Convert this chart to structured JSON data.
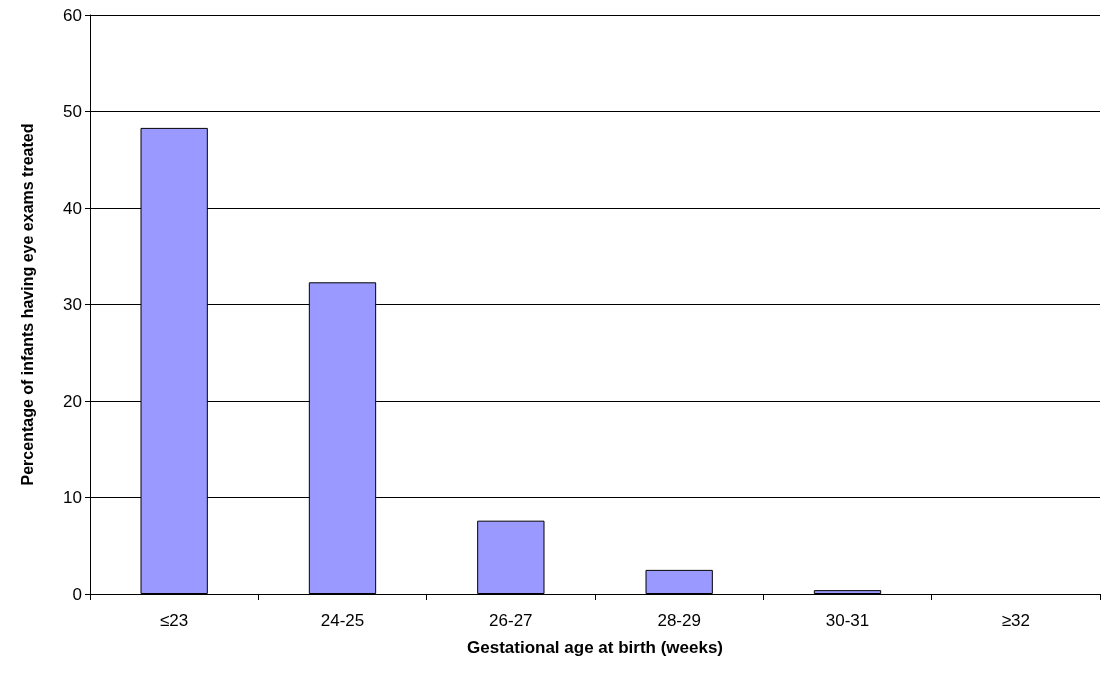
{
  "chart_data": {
    "type": "bar",
    "xlabel": "Gestational age at birth (weeks)",
    "ylabel": "Percentage of infants having eye exams treated",
    "categories": [
      "≤23",
      "24-25",
      "26-27",
      "28-29",
      "30-31",
      "≥32"
    ],
    "values": [
      48.3,
      32.3,
      7.6,
      2.5,
      0.4,
      0
    ],
    "color": "#9999ff",
    "ylim": [
      0,
      60
    ],
    "yticks": [
      0,
      10,
      20,
      30,
      40,
      50,
      60
    ],
    "grid": "y"
  }
}
